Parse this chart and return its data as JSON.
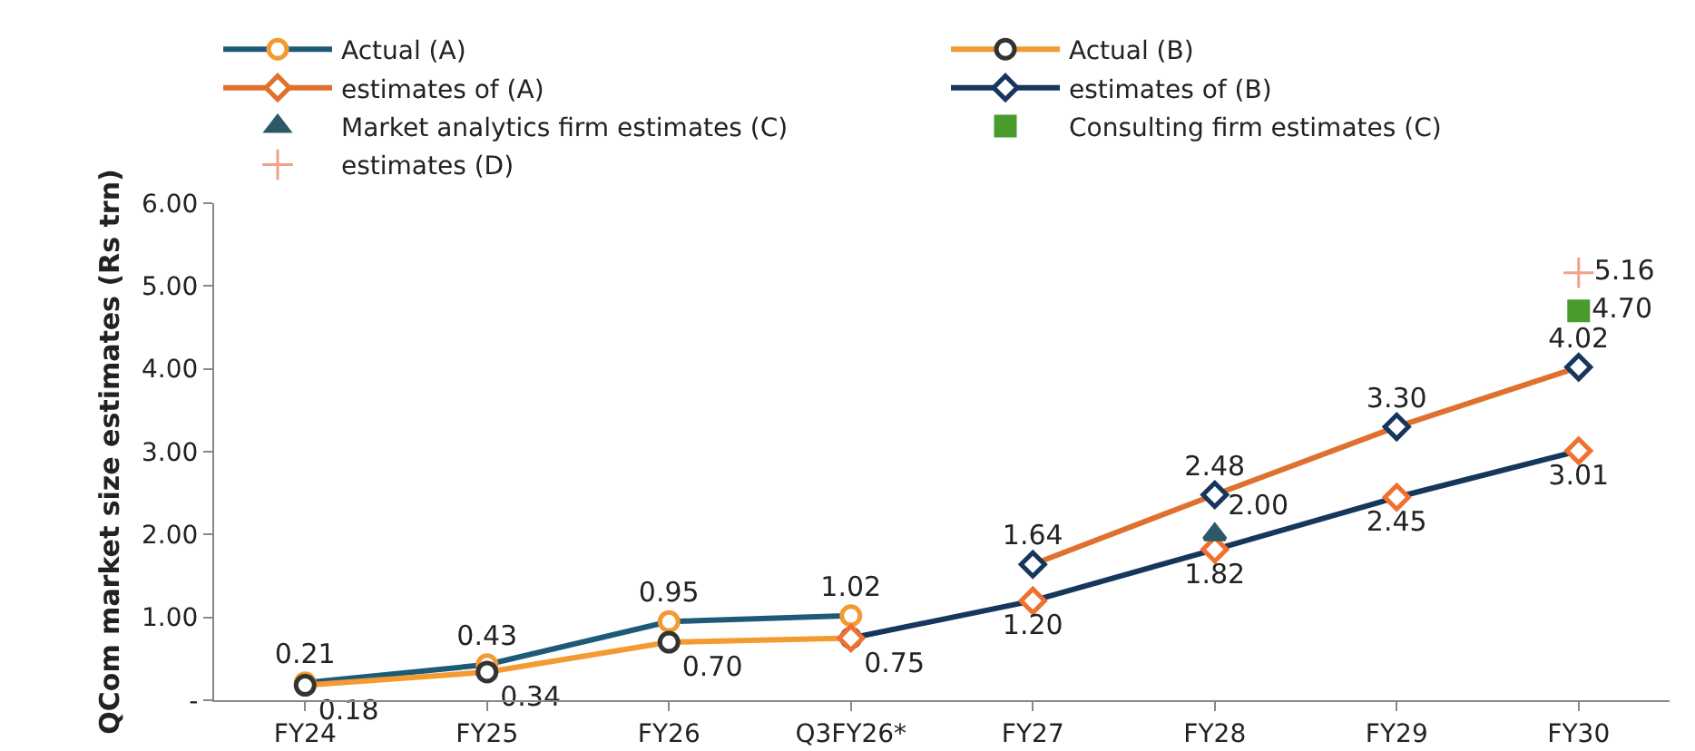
{
  "chart_data": {
    "type": "line",
    "ylabel": "QCom market size estimates (Rs trn)",
    "categories": [
      "FY24",
      "FY25",
      "FY26",
      "Q3FY26*",
      "FY27",
      "FY28",
      "FY29",
      "FY30"
    ],
    "ylim": [
      0,
      6
    ],
    "yticks": [
      {
        "value": 0,
        "label": "-"
      },
      {
        "value": 1,
        "label": "1.00"
      },
      {
        "value": 2,
        "label": "2.00"
      },
      {
        "value": 3,
        "label": "3.00"
      },
      {
        "value": 4,
        "label": "4.00"
      },
      {
        "value": 5,
        "label": "5.00"
      },
      {
        "value": 6,
        "label": "6.00"
      }
    ],
    "grid": false,
    "legend": "top",
    "series": [
      {
        "name": "Actual (A)",
        "color": "#1d5a78",
        "colors": [
          "#f39a30",
          "#f39a30",
          "#f39a30",
          "#f39a30",
          null,
          null,
          null,
          null
        ],
        "marker": "circle",
        "values": [
          0.21,
          0.43,
          0.95,
          1.02,
          null,
          null,
          null,
          null
        ],
        "value_labels": [
          "0.21",
          "0.43",
          "0.95",
          "1.02",
          null,
          null,
          null,
          null
        ]
      },
      {
        "name": "Actual (B)",
        "color": "#f39a30",
        "colors": [
          "#333333",
          "#333333",
          "#333333",
          "#333333",
          null,
          null,
          null,
          null
        ],
        "marker": "circle",
        "values": [
          0.18,
          0.34,
          0.7,
          0.75,
          null,
          null,
          null,
          null
        ],
        "value_labels": [
          "0.18",
          "0.34",
          "0.70",
          "0.75",
          null,
          null,
          null,
          null
        ]
      },
      {
        "name": "estimates of (A)",
        "color": "#e0702e",
        "colors": [
          null,
          null,
          null,
          null,
          "#16365c",
          "#16365c",
          "#16365c",
          "#16365c"
        ],
        "marker": "diamond",
        "values": [
          null,
          null,
          null,
          null,
          1.64,
          2.48,
          3.3,
          4.02
        ],
        "value_labels": [
          null,
          null,
          null,
          null,
          "1.64",
          "2.48",
          "3.30",
          "4.02"
        ]
      },
      {
        "name": "estimates of (B)",
        "color": "#16365c",
        "colors": [
          null,
          null,
          null,
          "#f07030",
          "#f07030",
          "#f07030",
          "#f07030",
          "#f07030"
        ],
        "marker": "diamond",
        "values": [
          null,
          null,
          null,
          0.75,
          1.2,
          1.82,
          2.45,
          3.01
        ],
        "value_labels": [
          null,
          null,
          null,
          null,
          "1.20",
          "1.82",
          "2.45",
          "3.01"
        ]
      },
      {
        "name": "Market analytics firm estimates (C)",
        "type": "scatter",
        "color": "#2c5868",
        "marker": "triangle",
        "values": [
          null,
          null,
          null,
          null,
          null,
          2.0,
          null,
          null
        ],
        "value_labels": [
          null,
          null,
          null,
          null,
          null,
          "2.00",
          null,
          null
        ]
      },
      {
        "name": "Consulting firm estimates (C)",
        "type": "scatter",
        "color": "#4a9a2c",
        "marker": "square",
        "values": [
          null,
          null,
          null,
          null,
          null,
          null,
          null,
          4.7
        ],
        "value_labels": [
          null,
          null,
          null,
          null,
          null,
          null,
          null,
          "4.70"
        ]
      },
      {
        "name": "estimates (D)",
        "type": "scatter",
        "color": "#f4a08c",
        "marker": "cross",
        "values": [
          null,
          null,
          null,
          null,
          null,
          null,
          null,
          5.16
        ],
        "value_labels": [
          null,
          null,
          null,
          null,
          null,
          null,
          null,
          "5.16"
        ]
      }
    ]
  }
}
